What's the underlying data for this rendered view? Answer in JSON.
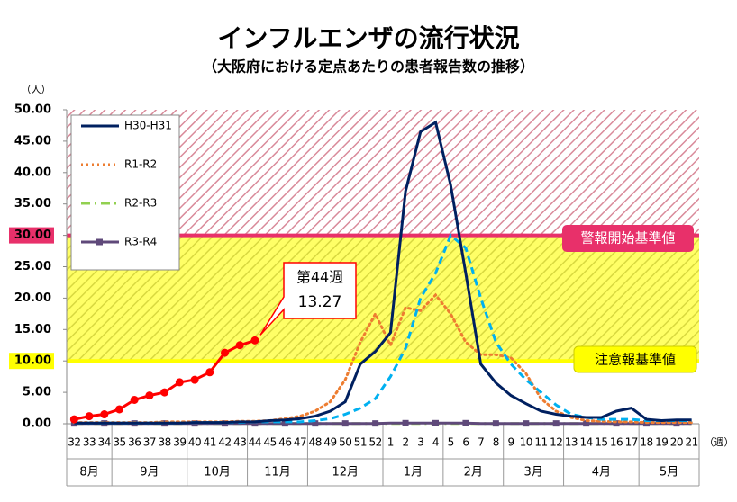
{
  "chart_data": {
    "type": "line",
    "title": "インフルエンザの流行状況",
    "subtitle": "（大阪府における定点あたりの患者報告数の推移）",
    "y_unit": "（人）",
    "x_unit": "（週）",
    "categories": [
      "32",
      "33",
      "34",
      "35",
      "36",
      "37",
      "38",
      "39",
      "40",
      "41",
      "42",
      "43",
      "44",
      "45",
      "46",
      "47",
      "48",
      "49",
      "50",
      "51",
      "52",
      "1",
      "2",
      "3",
      "4",
      "5",
      "6",
      "7",
      "8",
      "9",
      "10",
      "11",
      "12",
      "13",
      "14",
      "15",
      "16",
      "17",
      "18",
      "19",
      "20",
      "21"
    ],
    "months": [
      {
        "label": "8月",
        "span": 3
      },
      {
        "label": "9月",
        "span": 5
      },
      {
        "label": "10月",
        "span": 4
      },
      {
        "label": "11月",
        "span": 4
      },
      {
        "label": "12月",
        "span": 5
      },
      {
        "label": "1月",
        "span": 4
      },
      {
        "label": "2月",
        "span": 4
      },
      {
        "label": "3月",
        "span": 4
      },
      {
        "label": "4月",
        "span": 5
      },
      {
        "label": "5月",
        "span": 4
      }
    ],
    "ylim": [
      0,
      50
    ],
    "yticks": [
      {
        "value": 0,
        "label": "0.00"
      },
      {
        "value": 5,
        "label": "5.00"
      },
      {
        "value": 10,
        "label": "10.00"
      },
      {
        "value": 15,
        "label": "15.00"
      },
      {
        "value": 20,
        "label": "20.00"
      },
      {
        "value": 25,
        "label": "25.00"
      },
      {
        "value": 30,
        "label": "30.00"
      },
      {
        "value": 35,
        "label": "35.00"
      },
      {
        "value": 40,
        "label": "40.00"
      },
      {
        "value": 45,
        "label": "45.00"
      },
      {
        "value": 50,
        "label": "50.00"
      }
    ],
    "thresholds": [
      {
        "value": 30,
        "label": "警報開始基準値",
        "color": "#e8306a",
        "band_color": "#ffffff",
        "hatch": "#d98a9a"
      },
      {
        "value": 10,
        "label": "注意報基準値",
        "color": "#ffff00",
        "band_color": "#ffff66",
        "hatch": "#d8d840"
      }
    ],
    "annotation": {
      "text": "第44週"
    },
    "series": [
      {
        "name": "H30-H31",
        "color": "#002060",
        "style": "solid",
        "values": [
          0.1,
          0.1,
          0.1,
          0.1,
          0.1,
          0.1,
          0.1,
          0.1,
          0.2,
          0.2,
          0.2,
          0.3,
          0.3,
          0.5,
          0.6,
          0.8,
          1.2,
          2,
          3.5,
          9.5,
          11.5,
          14.5,
          37,
          46.5,
          48,
          38,
          24,
          9.5,
          6.5,
          4.5,
          3.2,
          2,
          1.5,
          1.2,
          1,
          1,
          2,
          2.5,
          0.7,
          0.5,
          0.6,
          0.6
        ]
      },
      {
        "name": "R1-R2",
        "color": "#ed7d31",
        "style": "dotted",
        "values": [
          0.2,
          0.2,
          0.2,
          0.2,
          0.2,
          0.2,
          0.3,
          0.3,
          0.3,
          0.3,
          0.3,
          0.4,
          0.4,
          0.5,
          0.8,
          1.2,
          2,
          3.5,
          7,
          13,
          17.5,
          12.5,
          18.5,
          18,
          20.5,
          17.5,
          13,
          11,
          11,
          10.5,
          8,
          4,
          2,
          1,
          0.5,
          0.4,
          0.3,
          0.3,
          0.2,
          0.2,
          0.2,
          0.2
        ]
      },
      {
        "name": "R2-R3",
        "color": "#92d050",
        "style": "dashdot",
        "values": [
          0.05,
          0.05,
          0.05,
          0.05,
          0.05,
          0.05,
          0.05,
          0.05,
          0.05,
          0.05,
          0.05,
          0.05,
          0.05,
          0.05,
          0.05,
          0.05,
          0.05,
          0.05,
          0.05,
          0.05,
          0.05,
          0.05,
          0.05,
          0.05,
          0.05,
          0.05,
          0.05,
          0.05,
          0.05,
          0.05,
          0.05,
          0.05,
          0.05,
          0.05,
          0.05,
          0.05,
          0.05,
          0.05,
          0.05,
          0.05,
          0.05,
          0.05
        ]
      },
      {
        "name": "R3-R4",
        "color": "#5f497a",
        "style": "marker",
        "values": [
          0.05,
          0.05,
          0.05,
          0.05,
          0.05,
          0.05,
          0.05,
          0.05,
          0.05,
          0.05,
          0.05,
          0.05,
          0.05,
          0.05,
          0.05,
          0.05,
          0.05,
          0.05,
          0.05,
          0.05,
          0.05,
          0.1,
          0.1,
          0.1,
          0.1,
          0.1,
          0.1,
          0.05,
          0.05,
          0.05,
          0.05,
          0.05,
          0.05,
          0.05,
          0.05,
          0.05,
          0.05,
          0.05,
          0.05,
          0.05,
          0.05,
          0.05
        ]
      },
      {
        "color": "#00b0f0",
        "style": "dashed",
        "values": [
          0.1,
          0.1,
          0.1,
          0.1,
          0.1,
          0.1,
          0.1,
          0.1,
          0.2,
          0.2,
          0.2,
          0.2,
          0.3,
          0.3,
          0.3,
          0.3,
          0.5,
          0.8,
          1.5,
          2.5,
          4,
          7.5,
          12,
          20,
          24,
          30,
          28,
          20,
          13,
          9.5,
          7,
          5,
          3,
          1.5,
          1,
          0.7,
          0.7,
          0.7,
          0.5,
          0.5,
          0.5,
          0.5
        ]
      },
      {
        "color": "#ff0000",
        "style": "current",
        "values": [
          0.7,
          1.2,
          1.5,
          2.3,
          3.8,
          4.5,
          5,
          6.6,
          7,
          8.2,
          11.3,
          12.5,
          13.27,
          null,
          null,
          null,
          null,
          null,
          null,
          null,
          null,
          null,
          null,
          null,
          null,
          null,
          null,
          null,
          null,
          null,
          null,
          null,
          null,
          null,
          null,
          null,
          null,
          null,
          null,
          null,
          null,
          null
        ],
        "value_labels": [
          null,
          null,
          null,
          null,
          null,
          null,
          null,
          null,
          null,
          null,
          null,
          null,
          "13.27",
          null,
          null,
          null,
          null,
          null,
          null,
          null,
          null,
          null,
          null,
          null,
          null,
          null,
          null,
          null,
          null,
          null,
          null,
          null,
          null,
          null,
          null,
          null,
          null,
          null,
          null,
          null,
          null,
          null
        ]
      }
    ]
  }
}
